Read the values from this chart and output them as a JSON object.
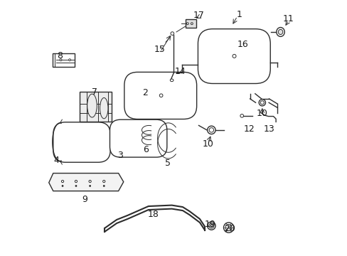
{
  "background_color": "#ffffff",
  "line_color": "#2d2d2d",
  "label_color": "#1a1a1a",
  "figure_width": 4.89,
  "figure_height": 3.6,
  "dpi": 100,
  "font_size": 9
}
